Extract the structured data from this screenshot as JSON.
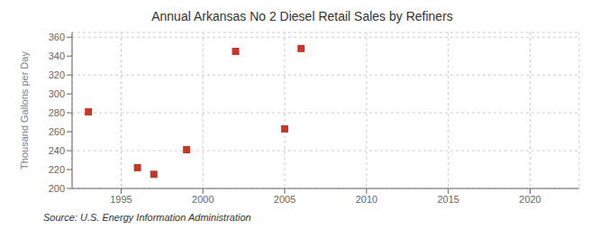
{
  "chart_data": {
    "type": "scatter",
    "title": "Annual Arkansas No 2 Diesel Retail Sales by Refiners",
    "ylabel": "Thousand Gallons per Day",
    "annotations": [
      "Source: U.S. Energy Information Administration"
    ],
    "x": [
      1993,
      1996,
      1997,
      1999,
      2002,
      2005,
      2006
    ],
    "values": [
      281,
      222,
      215,
      241,
      345,
      263,
      348
    ],
    "color": "#c0392b",
    "marker": "square",
    "xlim": [
      1992,
      2023
    ],
    "xticks": [
      1995,
      2000,
      2005,
      2010,
      2015,
      2020
    ],
    "ylim": [
      200,
      365
    ],
    "yticks": [
      200,
      220,
      240,
      260,
      280,
      300,
      320,
      340,
      360
    ],
    "grid": true
  }
}
